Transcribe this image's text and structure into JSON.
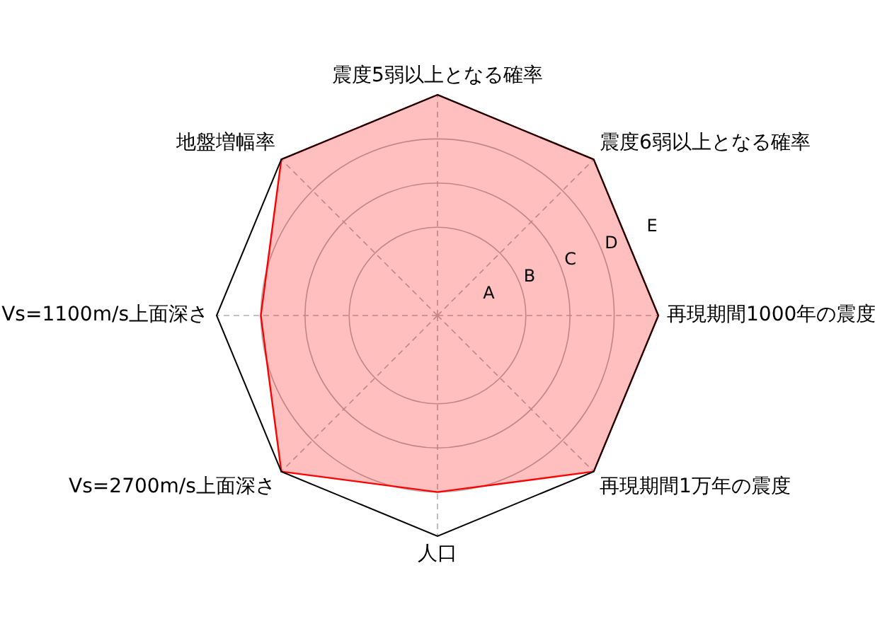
{
  "chart_data": {
    "type": "radar",
    "categories": [
      "震度5弱以上となる確率",
      "震度6弱以上となる確率",
      "再現期間1000年の震度",
      "再現期間1万年の震度",
      "人口",
      "Vs=2700m/s上面深さ",
      "Vs=1100m/s上面深さ",
      "地盤増幅率"
    ],
    "series": [
      {
        "color": "#ff0000",
        "values": [
          5,
          5,
          5,
          5,
          4,
          5,
          4,
          5
        ]
      }
    ],
    "ylim": [
      0,
      5
    ],
    "yticks": [
      {
        "value": 1,
        "label": "A"
      },
      {
        "value": 2,
        "label": "B"
      },
      {
        "value": 3,
        "label": "C"
      },
      {
        "value": 4,
        "label": "D"
      },
      {
        "value": 5,
        "label": "E"
      }
    ],
    "grid": true,
    "legend": false,
    "marker": "none",
    "line_style": "solid"
  }
}
